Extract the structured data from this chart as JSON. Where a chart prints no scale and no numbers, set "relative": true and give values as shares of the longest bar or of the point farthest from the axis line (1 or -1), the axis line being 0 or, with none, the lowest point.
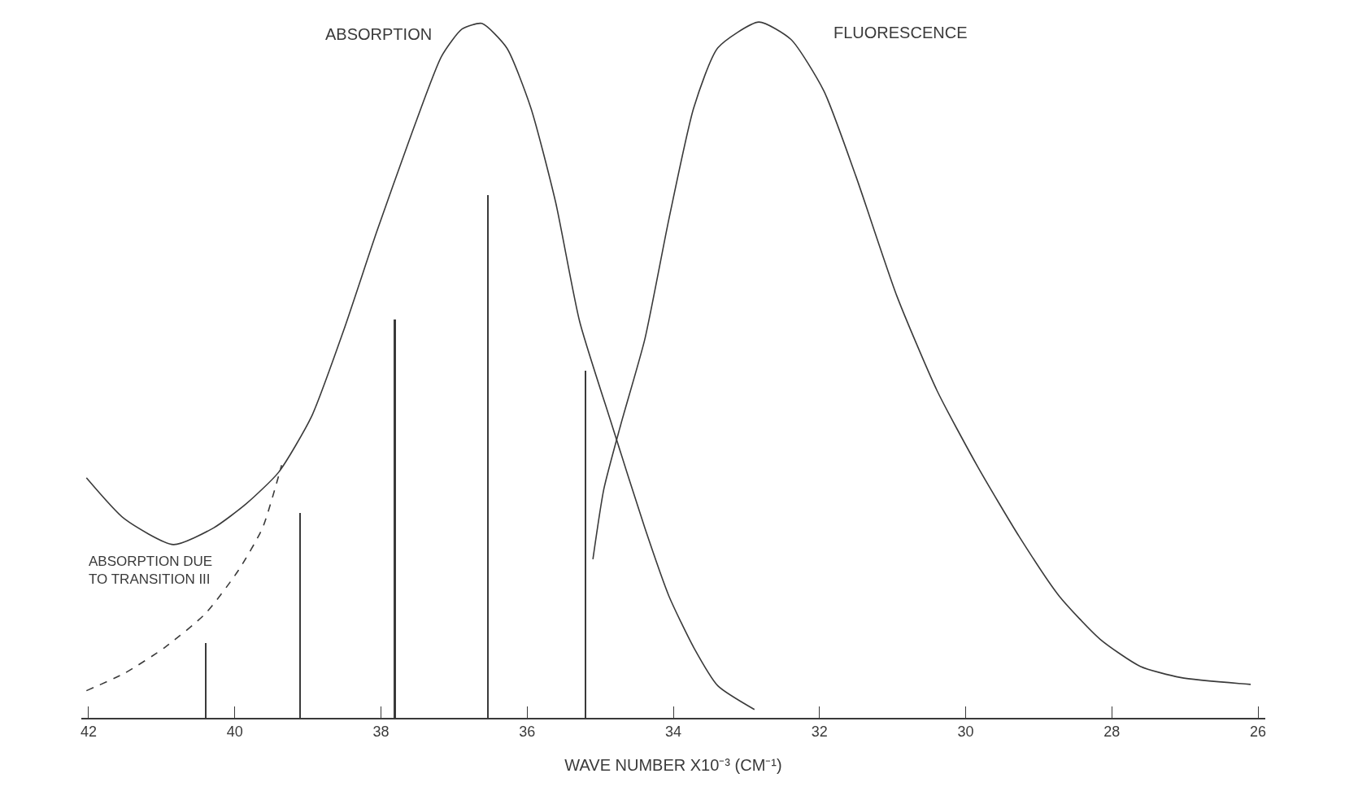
{
  "chart_data": {
    "type": "line",
    "relative": true,
    "xlabel": "WAVE NUMBER X10⁻³ (CM⁻¹)",
    "xlim": [
      42.1,
      25.9
    ],
    "xticks": [
      42,
      40,
      38,
      36,
      34,
      32,
      30,
      28,
      26
    ],
    "legend": false,
    "marker": "none",
    "series": [
      {
        "name": "ABSORPTION",
        "color": "#3a3a3a",
        "line_style": "solid",
        "x": [
          42.03,
          41.51,
          40.84,
          40.29,
          39.84,
          39.4,
          38.95,
          38.51,
          38.06,
          37.62,
          37.17,
          36.89,
          36.62,
          36.28,
          35.95,
          35.61,
          35.28,
          34.84,
          34.39,
          34.06,
          33.72,
          33.39,
          32.89
        ],
        "values": [
          0.345,
          0.286,
          0.249,
          0.273,
          0.308,
          0.353,
          0.433,
          0.557,
          0.698,
          0.828,
          0.951,
          0.99,
          0.998,
          0.963,
          0.877,
          0.741,
          0.569,
          0.421,
          0.273,
          0.175,
          0.101,
          0.046,
          0.012
        ]
      },
      {
        "name": "FLUORESCENCE",
        "color": "#3a3a3a",
        "line_style": "solid",
        "x": [
          35.1,
          34.95,
          34.72,
          34.39,
          34.06,
          33.72,
          33.39,
          32.83,
          32.39,
          31.94,
          31.5,
          30.94,
          30.39,
          29.83,
          29.27,
          28.72,
          28.16,
          27.61,
          27.06,
          26.1
        ],
        "values": [
          0.228,
          0.329,
          0.421,
          0.544,
          0.717,
          0.877,
          0.963,
          1.0,
          0.975,
          0.901,
          0.778,
          0.606,
          0.47,
          0.36,
          0.261,
          0.175,
          0.113,
          0.074,
          0.058,
          0.048
        ]
      },
      {
        "color": "#3a3a3a",
        "line_style": "dashed",
        "x": [
          42.03,
          41.51,
          40.96,
          40.4,
          39.95,
          39.62,
          39.36
        ],
        "values": [
          0.039,
          0.064,
          0.101,
          0.15,
          0.212,
          0.273,
          0.363
        ]
      },
      {
        "color": "#3a3a3a",
        "type": "bar",
        "x": [
          40.4,
          39.11,
          37.81,
          36.54,
          35.2
        ],
        "values": [
          0.107,
          0.294,
          0.573,
          0.751,
          0.499
        ]
      }
    ],
    "annotations": [
      {
        "text": "ABSORPTION DUE\nTO TRANSITION III",
        "x": 39.95,
        "y": 0.212
      }
    ]
  }
}
